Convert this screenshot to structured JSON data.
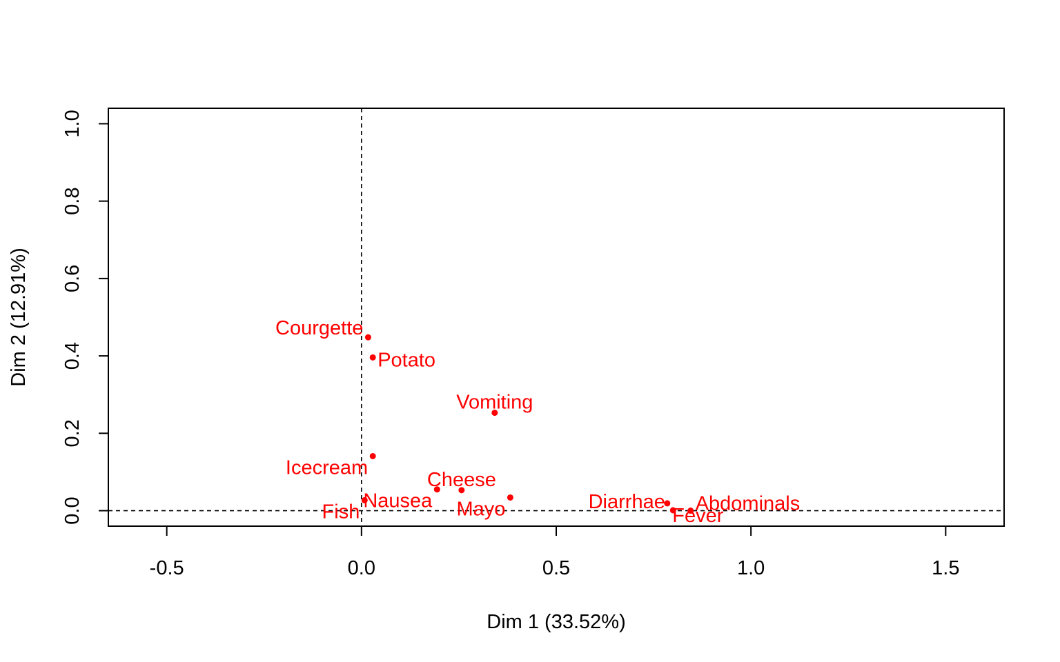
{
  "chart_data": {
    "type": "scatter",
    "title": "",
    "xlabel": "Dim 1 (33.52%)",
    "ylabel": "Dim 2 (12.91%)",
    "xlim": [
      -0.65,
      1.65
    ],
    "ylim": [
      -0.04,
      1.04
    ],
    "x_ticks": [
      -0.5,
      0.0,
      0.5,
      1.0,
      1.5
    ],
    "x_tick_labels": [
      "-0.5",
      "0.0",
      "0.5",
      "1.0",
      "1.5"
    ],
    "y_ticks": [
      0.0,
      0.2,
      0.4,
      0.6,
      0.8,
      1.0
    ],
    "y_tick_labels": [
      "0.0",
      "0.2",
      "0.4",
      "0.6",
      "0.8",
      "1.0"
    ],
    "reference_lines": {
      "x": 0,
      "y": 0,
      "style": "dashed"
    },
    "grid": false,
    "point_color": "#ff0000",
    "points": [
      {
        "label": "Courgette",
        "x": 0.017,
        "y": 0.448,
        "label_pos": "upper-left"
      },
      {
        "label": "Potato",
        "x": 0.029,
        "y": 0.396,
        "label_pos": "right"
      },
      {
        "label": "Vomiting",
        "x": 0.342,
        "y": 0.253,
        "label_pos": "above"
      },
      {
        "label": "Icecream",
        "x": 0.029,
        "y": 0.141,
        "label_pos": "lower-left"
      },
      {
        "label": "Cheese",
        "x": 0.257,
        "y": 0.053,
        "label_pos": "above"
      },
      {
        "label": "Nausea",
        "x": 0.194,
        "y": 0.055,
        "label_pos": "lower-left"
      },
      {
        "label": "Mayo",
        "x": 0.382,
        "y": 0.034,
        "label_pos": "lower-left"
      },
      {
        "label": "Fish",
        "x": 0.008,
        "y": 0.027,
        "label_pos": "lower-left"
      },
      {
        "label": "Diarrhae",
        "x": 0.785,
        "y": 0.019,
        "label_pos": "left"
      },
      {
        "label": "Abdominals",
        "x": 0.845,
        "y": 0.0,
        "label_pos": "upper-right"
      },
      {
        "label": "Fever",
        "x": 0.8,
        "y": 0.001,
        "label_pos": "lower-right"
      }
    ]
  }
}
